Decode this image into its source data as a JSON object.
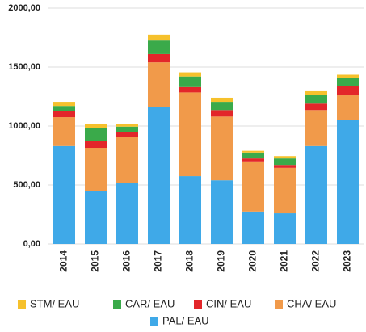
{
  "chart_data": {
    "type": "stacked_bar",
    "categories": [
      "2014",
      "2015",
      "2016",
      "2017",
      "2018",
      "2019",
      "2020",
      "2021",
      "2022",
      "2023"
    ],
    "series": [
      {
        "name": "STM/ EAU",
        "color": "#f6c12c",
        "values": [
          35,
          40,
          25,
          50,
          35,
          35,
          15,
          20,
          30,
          30
        ]
      },
      {
        "name": "CAR/ EAU",
        "color": "#3aaa4a",
        "values": [
          45,
          110,
          45,
          115,
          90,
          70,
          50,
          55,
          75,
          65
        ]
      },
      {
        "name": "CIN/ EAU",
        "color": "#e3262a",
        "values": [
          50,
          55,
          45,
          70,
          45,
          55,
          25,
          25,
          55,
          80
        ]
      },
      {
        "name": "CHA/ EAU",
        "color": "#f19a4a",
        "values": [
          245,
          365,
          385,
          380,
          710,
          540,
          425,
          385,
          305,
          210
        ]
      },
      {
        "name": "PAL/ EAU",
        "color": "#3fa9e8",
        "values": [
          830,
          450,
          520,
          1160,
          575,
          540,
          275,
          260,
          830,
          1050
        ]
      }
    ],
    "ylim": [
      0,
      2000
    ],
    "yticks": [
      {
        "value": 0,
        "label": "0,00"
      },
      {
        "value": 500,
        "label": "500,00"
      },
      {
        "value": 1000,
        "label": "1000,00"
      },
      {
        "value": 1500,
        "label": "1500,00"
      },
      {
        "value": 2000,
        "label": "2000,00"
      }
    ],
    "grid": true
  }
}
